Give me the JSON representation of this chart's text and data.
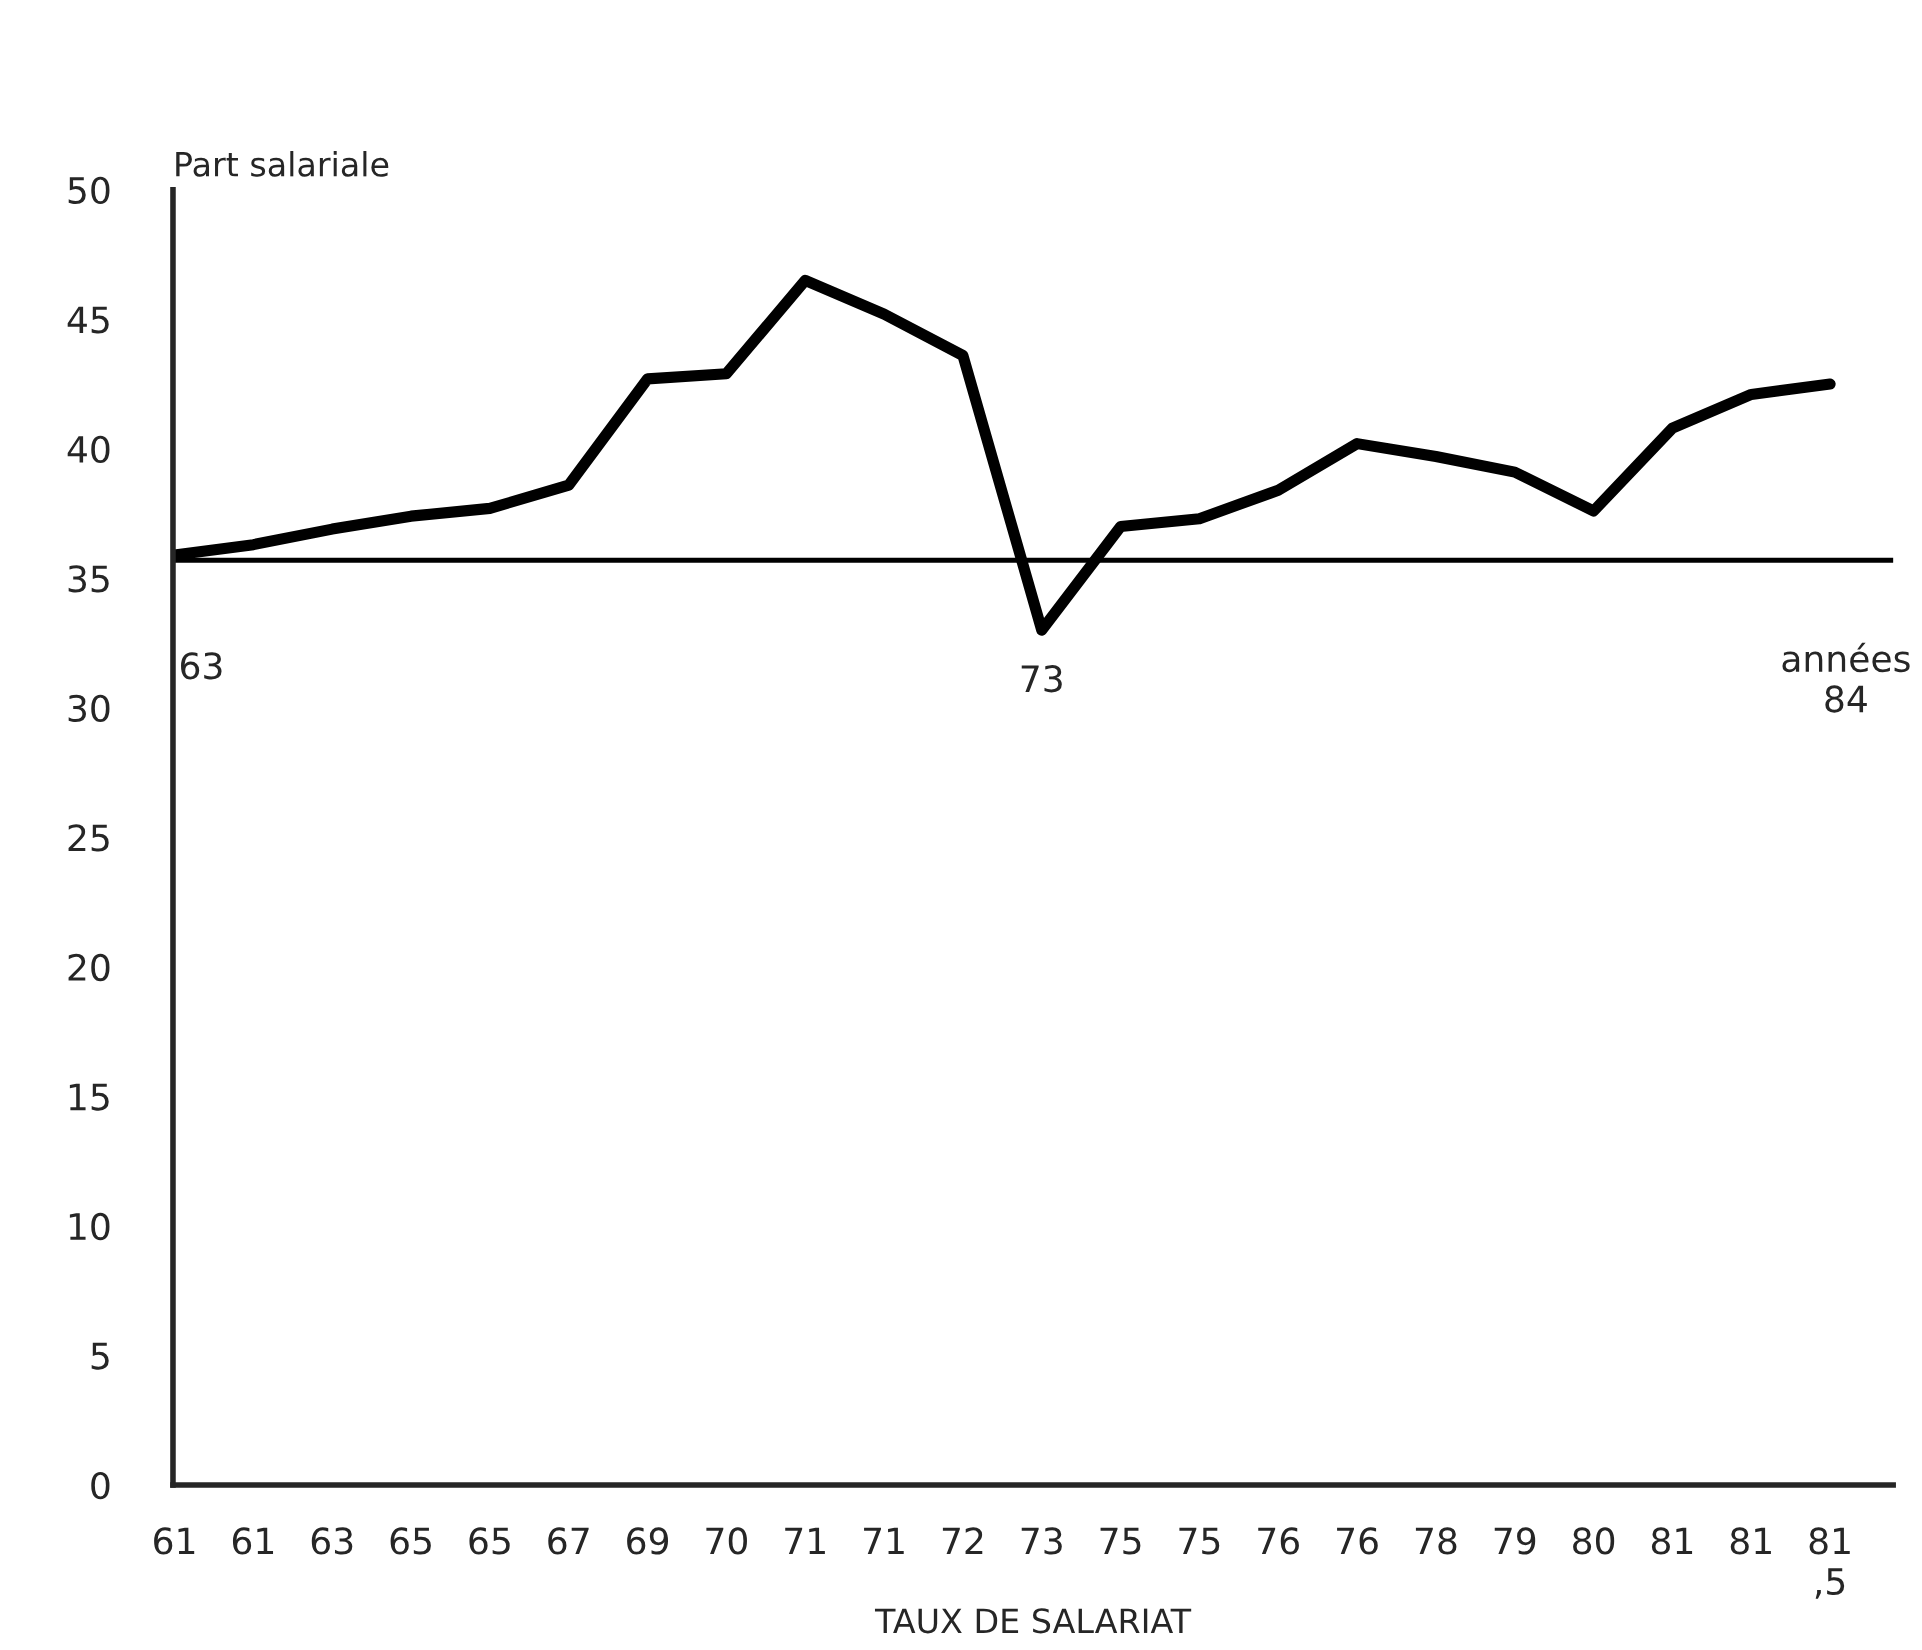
{
  "chart_data": {
    "type": "line",
    "ylabel": "Part salariale",
    "xlabel": "TAUX DE SALARIAT",
    "categories": [
      "61",
      "61",
      "63",
      "65",
      "65",
      "67",
      "69",
      "70",
      "71",
      "71",
      "72",
      "73",
      "75",
      "75",
      "76",
      "76",
      "78",
      "79",
      "80",
      "81",
      "81",
      "81\n,5"
    ],
    "series": [
      {
        "color": "#000000",
        "values": [
          35.9,
          36.3,
          36.9,
          37.4,
          37.7,
          38.6,
          42.7,
          42.9,
          46.5,
          45.2,
          43.6,
          33.0,
          37.0,
          37.3,
          38.4,
          40.2,
          39.7,
          39.1,
          37.6,
          40.8,
          42.1,
          42.5
        ]
      }
    ],
    "ylim": [
      0,
      50
    ],
    "yticks": [
      0,
      5,
      10,
      15,
      20,
      25,
      30,
      35,
      40,
      45,
      50
    ],
    "ref_lines": [
      {
        "axis": "y",
        "value": 35.7,
        "color": "#000000"
      }
    ],
    "annotations": [
      "63",
      "73",
      "années\n84"
    ],
    "grid": false,
    "legend": false,
    "marker": "none",
    "line_style": "solid"
  }
}
